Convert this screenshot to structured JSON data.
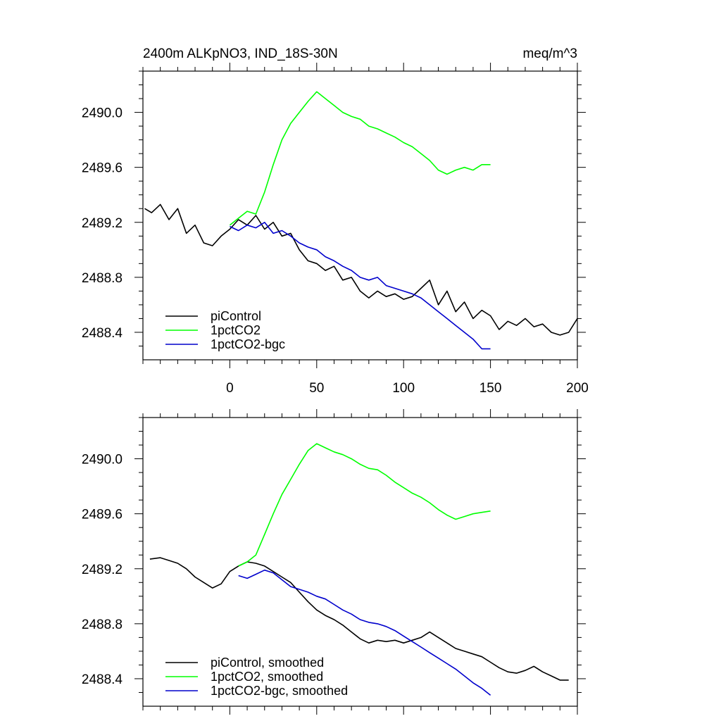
{
  "chart_data": [
    {
      "type": "line",
      "title": "2400m ALKpNO3, IND_18S-30N",
      "units": "meq/m^3",
      "xlim": [
        -50,
        200
      ],
      "ylim": [
        2488.2,
        2490.3
      ],
      "xticks": [
        0,
        50,
        100,
        150,
        200
      ],
      "xtick_labels": [
        "0",
        "50",
        "100",
        "150",
        "200"
      ],
      "yticks": [
        2488.4,
        2488.8,
        2489.2,
        2489.6,
        2490.0
      ],
      "ytick_labels": [
        "2488.4",
        "2488.8",
        "2489.2",
        "2489.6",
        "2490.0"
      ],
      "legend_position": "bottom-left",
      "series": [
        {
          "name": "piControl",
          "color": "#000000",
          "x": [
            -49,
            -45,
            -40,
            -35,
            -30,
            -25,
            -20,
            -15,
            -10,
            -5,
            0,
            5,
            10,
            15,
            20,
            25,
            30,
            35,
            40,
            45,
            50,
            55,
            60,
            65,
            70,
            75,
            80,
            85,
            90,
            95,
            100,
            105,
            110,
            115,
            120,
            125,
            130,
            135,
            140,
            145,
            150,
            155,
            160,
            165,
            170,
            175,
            180,
            185,
            190,
            195,
            200
          ],
          "y": [
            2489.3,
            2489.27,
            2489.33,
            2489.22,
            2489.3,
            2489.12,
            2489.18,
            2489.05,
            2489.03,
            2489.1,
            2489.15,
            2489.22,
            2489.18,
            2489.25,
            2489.15,
            2489.2,
            2489.1,
            2489.12,
            2489.0,
            2488.92,
            2488.9,
            2488.85,
            2488.88,
            2488.78,
            2488.8,
            2488.7,
            2488.65,
            2488.7,
            2488.66,
            2488.68,
            2488.64,
            2488.66,
            2488.72,
            2488.78,
            2488.6,
            2488.7,
            2488.55,
            2488.62,
            2488.5,
            2488.56,
            2488.52,
            2488.42,
            2488.48,
            2488.45,
            2488.5,
            2488.44,
            2488.46,
            2488.4,
            2488.38,
            2488.4,
            2488.5
          ]
        },
        {
          "name": "1pctCO2",
          "color": "#00ff00",
          "x": [
            0,
            5,
            10,
            15,
            20,
            25,
            30,
            35,
            40,
            45,
            50,
            55,
            60,
            65,
            70,
            75,
            80,
            85,
            90,
            95,
            100,
            105,
            110,
            115,
            120,
            125,
            130,
            135,
            140,
            145,
            150
          ],
          "y": [
            2489.18,
            2489.23,
            2489.28,
            2489.26,
            2489.42,
            2489.62,
            2489.8,
            2489.92,
            2490.0,
            2490.08,
            2490.15,
            2490.1,
            2490.05,
            2490.0,
            2489.97,
            2489.95,
            2489.9,
            2489.88,
            2489.85,
            2489.82,
            2489.78,
            2489.75,
            2489.7,
            2489.65,
            2489.58,
            2489.55,
            2489.58,
            2489.6,
            2489.58,
            2489.62,
            2489.62
          ]
        },
        {
          "name": "1pctCO2-bgc",
          "color": "#0000cc",
          "x": [
            0,
            5,
            10,
            15,
            20,
            25,
            30,
            35,
            40,
            45,
            50,
            55,
            60,
            65,
            70,
            75,
            80,
            85,
            90,
            95,
            100,
            105,
            110,
            115,
            120,
            125,
            130,
            135,
            140,
            145,
            150
          ],
          "y": [
            2489.17,
            2489.14,
            2489.18,
            2489.16,
            2489.2,
            2489.12,
            2489.14,
            2489.1,
            2489.05,
            2489.02,
            2489.0,
            2488.95,
            2488.92,
            2488.88,
            2488.85,
            2488.8,
            2488.78,
            2488.8,
            2488.74,
            2488.72,
            2488.7,
            2488.68,
            2488.65,
            2488.6,
            2488.55,
            2488.5,
            2488.45,
            2488.4,
            2488.35,
            2488.28,
            2488.28
          ]
        }
      ]
    },
    {
      "type": "line",
      "title": "",
      "xlim": [
        -50,
        200
      ],
      "ylim": [
        2488.2,
        2490.3
      ],
      "xticks": [
        0,
        50,
        100,
        150,
        200
      ],
      "yticks": [
        2488.4,
        2488.8,
        2489.2,
        2489.6,
        2490.0
      ],
      "ytick_labels": [
        "2488.4",
        "2488.8",
        "2489.2",
        "2489.6",
        "2490.0"
      ],
      "legend_position": "bottom-left",
      "series": [
        {
          "name": "piControl, smoothed",
          "color": "#000000",
          "x": [
            -46,
            -40,
            -35,
            -30,
            -25,
            -20,
            -15,
            -10,
            -5,
            0,
            5,
            10,
            15,
            20,
            25,
            30,
            35,
            40,
            45,
            50,
            55,
            60,
            65,
            70,
            75,
            80,
            85,
            90,
            95,
            100,
            105,
            110,
            115,
            120,
            125,
            130,
            135,
            140,
            145,
            150,
            155,
            160,
            165,
            170,
            175,
            180,
            185,
            190,
            195
          ],
          "y": [
            2489.27,
            2489.28,
            2489.26,
            2489.24,
            2489.2,
            2489.14,
            2489.1,
            2489.06,
            2489.09,
            2489.18,
            2489.22,
            2489.25,
            2489.24,
            2489.22,
            2489.18,
            2489.14,
            2489.1,
            2489.03,
            2488.96,
            2488.9,
            2488.86,
            2488.83,
            2488.79,
            2488.74,
            2488.69,
            2488.66,
            2488.68,
            2488.67,
            2488.68,
            2488.66,
            2488.68,
            2488.7,
            2488.74,
            2488.7,
            2488.66,
            2488.62,
            2488.6,
            2488.58,
            2488.56,
            2488.52,
            2488.48,
            2488.45,
            2488.44,
            2488.46,
            2488.49,
            2488.45,
            2488.42,
            2488.39,
            2488.39
          ]
        },
        {
          "name": "1pctCO2, smoothed",
          "color": "#00ff00",
          "x": [
            5,
            10,
            15,
            20,
            25,
            30,
            35,
            40,
            45,
            50,
            55,
            60,
            65,
            70,
            75,
            80,
            85,
            90,
            95,
            100,
            105,
            110,
            115,
            120,
            125,
            130,
            135,
            140,
            145,
            150
          ],
          "y": [
            2489.22,
            2489.25,
            2489.3,
            2489.45,
            2489.6,
            2489.74,
            2489.85,
            2489.96,
            2490.06,
            2490.11,
            2490.08,
            2490.05,
            2490.03,
            2490.0,
            2489.96,
            2489.93,
            2489.92,
            2489.88,
            2489.83,
            2489.79,
            2489.75,
            2489.72,
            2489.68,
            2489.63,
            2489.59,
            2489.56,
            2489.58,
            2489.6,
            2489.61,
            2489.62
          ]
        },
        {
          "name": "1pctCO2-bgc, smoothed",
          "color": "#0000cc",
          "x": [
            5,
            10,
            15,
            20,
            25,
            30,
            35,
            40,
            45,
            50,
            55,
            60,
            65,
            70,
            75,
            80,
            85,
            90,
            95,
            100,
            105,
            110,
            115,
            120,
            125,
            130,
            135,
            140,
            145,
            150
          ],
          "y": [
            2489.15,
            2489.13,
            2489.16,
            2489.19,
            2489.17,
            2489.12,
            2489.07,
            2489.05,
            2489.03,
            2489.0,
            2488.98,
            2488.94,
            2488.9,
            2488.87,
            2488.83,
            2488.81,
            2488.8,
            2488.78,
            2488.75,
            2488.71,
            2488.67,
            2488.63,
            2488.59,
            2488.55,
            2488.51,
            2488.47,
            2488.42,
            2488.37,
            2488.33,
            2488.28
          ]
        }
      ]
    }
  ]
}
